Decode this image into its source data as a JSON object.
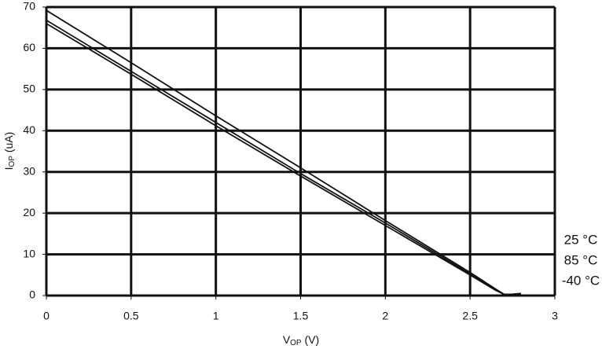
{
  "chart_data": {
    "type": "line",
    "x_label_parts": [
      "V",
      "OP",
      " (V)"
    ],
    "y_label_parts": [
      "I",
      "OP",
      " (uA)"
    ],
    "x": [
      0,
      0.5,
      1,
      1.5,
      2,
      2.5,
      2.65,
      2.7,
      2.75,
      2.8
    ],
    "series": [
      {
        "name": "25 °C",
        "color": "#111111",
        "values": [
          69.2,
          56.5,
          43.6,
          31,
          18.2,
          5.6,
          1.6,
          0.3,
          0.3,
          0.5
        ]
      },
      {
        "name": "85 °C",
        "color": "#111111",
        "values": [
          66.8,
          54.4,
          42,
          29.6,
          17.6,
          5.3,
          1.4,
          0.3,
          0.3,
          0.5
        ]
      },
      {
        "name": "-40 °C",
        "color": "#111111",
        "values": [
          66,
          53.7,
          41.2,
          29,
          17,
          5,
          1.3,
          0.3,
          0.3,
          0.5
        ]
      }
    ],
    "xlim": [
      0,
      3
    ],
    "xticks": [
      0,
      0.5,
      1,
      1.5,
      2,
      2.5,
      3
    ],
    "ylim": [
      0,
      70
    ],
    "yticks": [
      0,
      10,
      20,
      30,
      40,
      50,
      60,
      70
    ],
    "grid": true
  }
}
